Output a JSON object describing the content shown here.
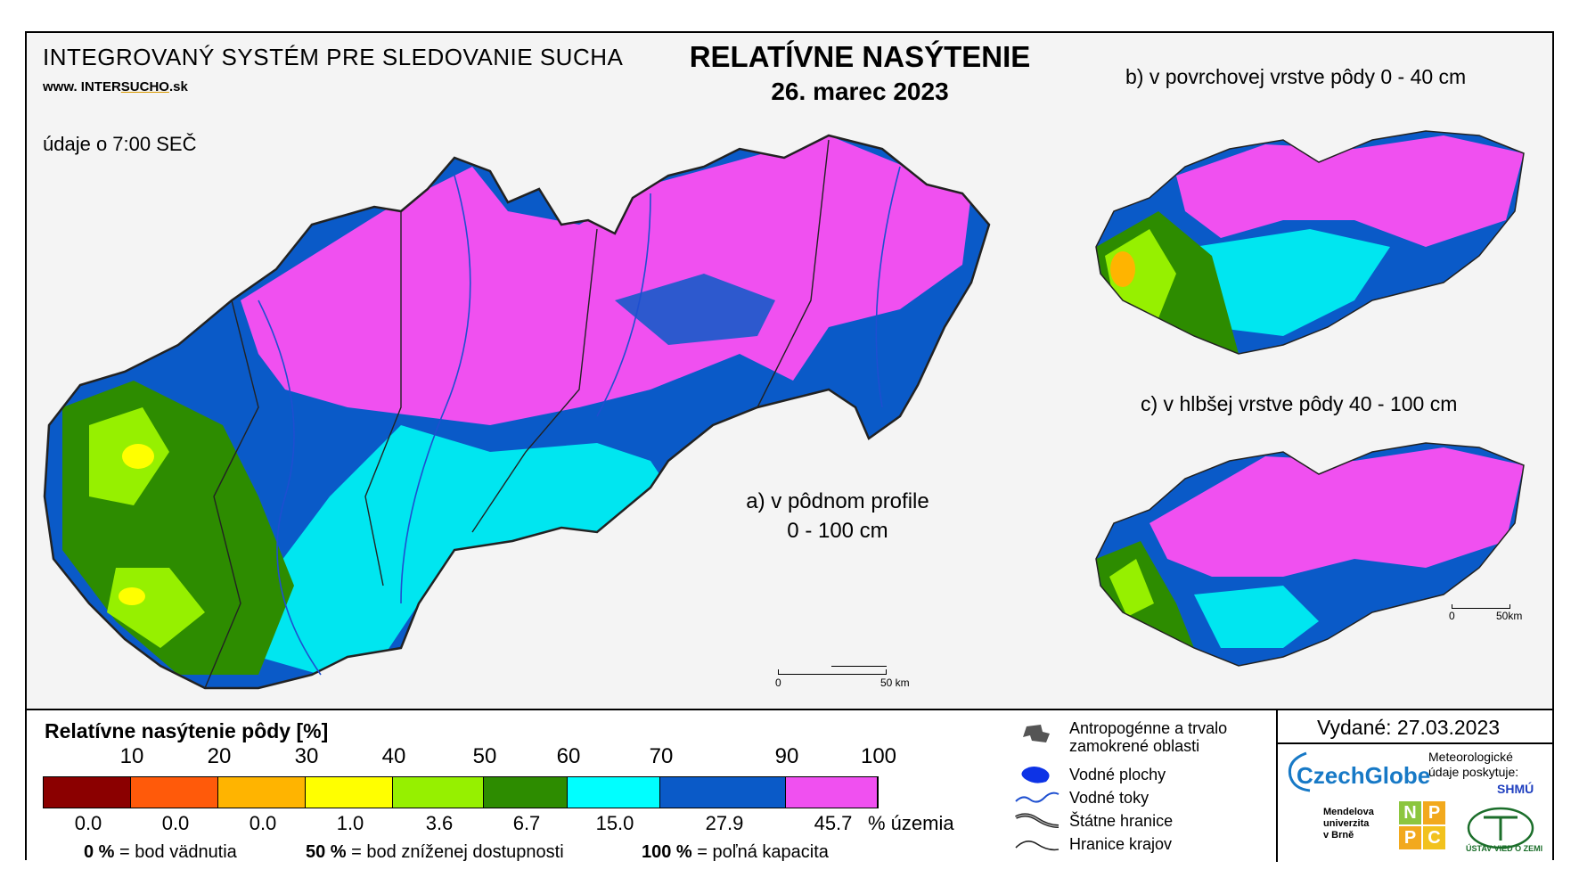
{
  "header": {
    "system_title": "INTEGROVANÝ SYSTÉM PRE SLEDOVANIE SUCHA",
    "url_prefix": "www. INTER",
    "url_brand": "SUCHO",
    "url_suffix": ".sk",
    "observation_time": "údaje o 7:00 SEČ",
    "title": "RELATÍVNE NASÝTENIE",
    "date": "26. marec 2023"
  },
  "maps": {
    "a_label_line1": "a) v pôdnom profile",
    "a_label_line2": "0 - 100 cm",
    "b_label": "b) v povrchovej vrstve pôdy 0 - 40 cm",
    "c_label": "c) v hlbšej vrstve pôdy 40 - 100 cm",
    "scale_main_zero": "0",
    "scale_main_end": "50 km",
    "scale_small_zero": "0",
    "scale_small_end": "50km"
  },
  "legend": {
    "title": "Relatívne nasýtenie pôdy [%]",
    "thresholds": [
      "10",
      "20",
      "30",
      "40",
      "50",
      "60",
      "70",
      "90",
      "100"
    ],
    "classes": [
      {
        "color": "#8b0000",
        "share": "0.0"
      },
      {
        "color": "#ff5a0a",
        "share": "0.0"
      },
      {
        "color": "#ffb400",
        "share": "0.0"
      },
      {
        "color": "#ffff00",
        "share": "1.0"
      },
      {
        "color": "#96f000",
        "share": "3.6"
      },
      {
        "color": "#2d8c00",
        "share": "6.7"
      },
      {
        "color": "#00ffff",
        "share": "15.0"
      },
      {
        "color": "#0a5ac8",
        "share": "27.9"
      },
      {
        "color": "#f050f0",
        "share": "45.7"
      }
    ],
    "share_unit": "% územia",
    "note1_value": "0 %",
    "note1_text": "= bod vädnutia",
    "note2_value": "50 %",
    "note2_text": "= bod zníženej dostupnosti",
    "note3_value": "100 %",
    "note3_text": "= poľná kapacita"
  },
  "symbols": {
    "anthropogenic": "Antropogénne a trvalo zamokrené oblasti",
    "water_bodies": "Vodné plochy",
    "water_streams": "Vodné toky",
    "state_border": "Štátne hranice",
    "region_border": "Hranice krajov"
  },
  "footer": {
    "issued": "Vydané: 27.03.2023",
    "czechglobe": "CzechGlobe",
    "met_data": "Meteorologické údaje poskytuje:",
    "shmu": "SHMÚ",
    "mendel_1": "Mendelova",
    "mendel_2": "univerzita",
    "mendel_3": "v Brně",
    "nppc": [
      "N",
      "P",
      "P",
      "C"
    ],
    "uvz": "ÚSTAV VIED O ZEMI"
  }
}
